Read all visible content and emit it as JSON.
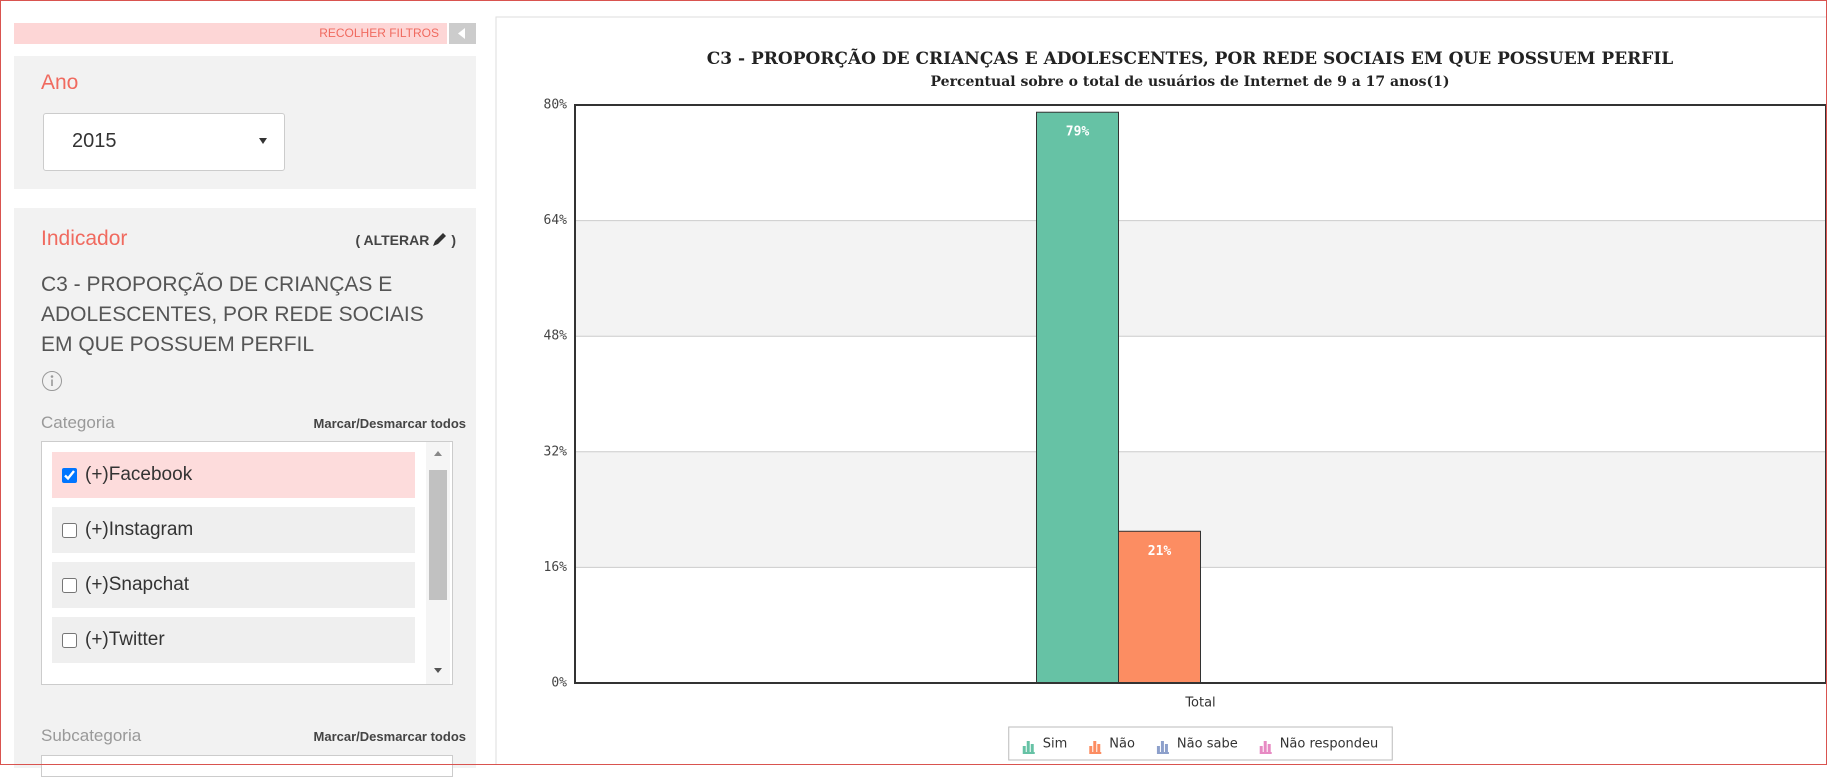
{
  "sidebar": {
    "collapse": "RECOLHER FILTROS",
    "year_label": "Ano",
    "year": "2015",
    "indicator_label": "Indicador",
    "change_open": "( ALTERAR",
    "change_close": ")",
    "indicator": "C3 - PROPORÇÃO DE CRIANÇAS E ADOLESCENTES, POR REDE SOCIAIS EM QUE POSSUEM PERFIL",
    "category_label": "Categoria",
    "toggle_all": "Marcar/Desmarcar todos",
    "categories": [
      {
        "label": "(+)Facebook",
        "checked": true
      },
      {
        "label": "(+)Instagram",
        "checked": false
      },
      {
        "label": "(+)Snapchat",
        "checked": false
      },
      {
        "label": "(+)Twitter",
        "checked": false
      }
    ],
    "subcategory_label": "Subcategoria",
    "subcategory_toggle_all": "Marcar/Desmarcar todos"
  },
  "chart_data": {
    "type": "bar",
    "title": "C3 - PROPORÇÃO DE CRIANÇAS E ADOLESCENTES, POR REDE SOCIAIS EM QUE POSSUEM PERFIL",
    "subtitle": "Percentual sobre o total de usuários de Internet de 9 a 17 anos(1)",
    "categories": [
      "Total"
    ],
    "series": [
      {
        "name": "Sim",
        "color": "#66c2a5",
        "values": [
          79
        ],
        "value_labels": [
          "79%"
        ]
      },
      {
        "name": "Não",
        "color": "#fc8d62",
        "values": [
          21
        ],
        "value_labels": [
          "21%"
        ]
      },
      {
        "name": "Não sabe",
        "color": "#8da0cb",
        "values": [
          0
        ]
      },
      {
        "name": "Não respondeu",
        "color": "#e78ac3",
        "values": [
          0
        ]
      }
    ],
    "ylim": [
      0,
      80
    ],
    "yticks": [
      {
        "value": 0,
        "label": "0%"
      },
      {
        "value": 16,
        "label": "16%"
      },
      {
        "value": 32,
        "label": "32%"
      },
      {
        "value": 48,
        "label": "48%"
      },
      {
        "value": 64,
        "label": "64%"
      },
      {
        "value": 80,
        "label": "80%"
      }
    ],
    "grid": true,
    "legend": "bottom"
  }
}
